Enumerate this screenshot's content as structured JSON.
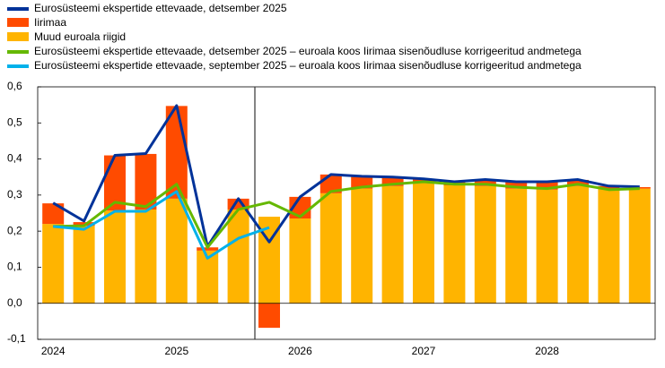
{
  "chart_data": {
    "type": "bar",
    "categories": [
      "2024",
      null,
      null,
      null,
      "2025",
      null,
      null,
      null,
      "2026",
      null,
      null,
      null,
      "2027",
      null,
      null,
      null,
      "2028",
      null,
      null,
      null
    ],
    "ylim": [
      -0.1,
      0.6
    ],
    "yticks": [
      {
        "value": -0.1,
        "label": "-0,1"
      },
      {
        "value": 0,
        "label": "0,0"
      },
      {
        "value": 0.1,
        "label": "0,1"
      },
      {
        "value": 0.2,
        "label": "0,2"
      },
      {
        "value": 0.3,
        "label": "0,3"
      },
      {
        "value": 0.4,
        "label": "0,4"
      },
      {
        "value": 0.5,
        "label": "0,5"
      },
      {
        "value": 0.6,
        "label": "0,6"
      }
    ],
    "series": [
      {
        "name": "Eurosüsteemi ekspertide ettevaade, detsember 2025",
        "type": "line",
        "color": "#003299",
        "values": [
          0.278,
          0.228,
          0.41,
          0.415,
          0.548,
          0.157,
          0.29,
          0.17,
          0.295,
          0.357,
          0.352,
          0.35,
          0.345,
          0.337,
          0.343,
          0.337,
          0.337,
          0.343,
          0.325,
          0.323
        ]
      },
      {
        "name": "Iirimaa",
        "type": "bar",
        "color": "#ff4b00",
        "values": [
          0.057,
          0.01,
          0.153,
          0.154,
          0.257,
          0.009,
          0.03,
          -0.068,
          0.06,
          0.052,
          0.034,
          0.025,
          0.01,
          0.01,
          0.017,
          0.019,
          0.022,
          0.017,
          0.007,
          0.004
        ]
      },
      {
        "name": "Muud euroala riigid",
        "type": "bar",
        "color": "#ffb400",
        "values": [
          0.22,
          0.215,
          0.257,
          0.26,
          0.29,
          0.146,
          0.26,
          0.24,
          0.235,
          0.305,
          0.318,
          0.325,
          0.335,
          0.327,
          0.325,
          0.318,
          0.315,
          0.325,
          0.318,
          0.318
        ]
      },
      {
        "name": "Eurosüsteemi ekspertide ettevaade, detsember 2025 – euroala koos Iirimaa sisenõudluse korrigeeritud andmetega",
        "type": "line",
        "color": "#65b800",
        "values": [
          0.213,
          0.215,
          0.28,
          0.268,
          0.33,
          0.155,
          0.26,
          0.28,
          0.24,
          0.31,
          0.322,
          0.33,
          0.337,
          0.33,
          0.33,
          0.322,
          0.318,
          0.33,
          0.315,
          0.318
        ]
      },
      {
        "name": "Eurosüsteemi ekspertide ettevaade, september 2025 – euroala koos Iirimaa sisenõudluse korrigeeritud andmetega",
        "type": "line",
        "color": "#00b1ea",
        "values": [
          0.213,
          0.205,
          0.255,
          0.255,
          0.31,
          0.125,
          0.18,
          0.21,
          null,
          null,
          null,
          null,
          null,
          null,
          null,
          null,
          null,
          null,
          null,
          null
        ]
      }
    ]
  }
}
